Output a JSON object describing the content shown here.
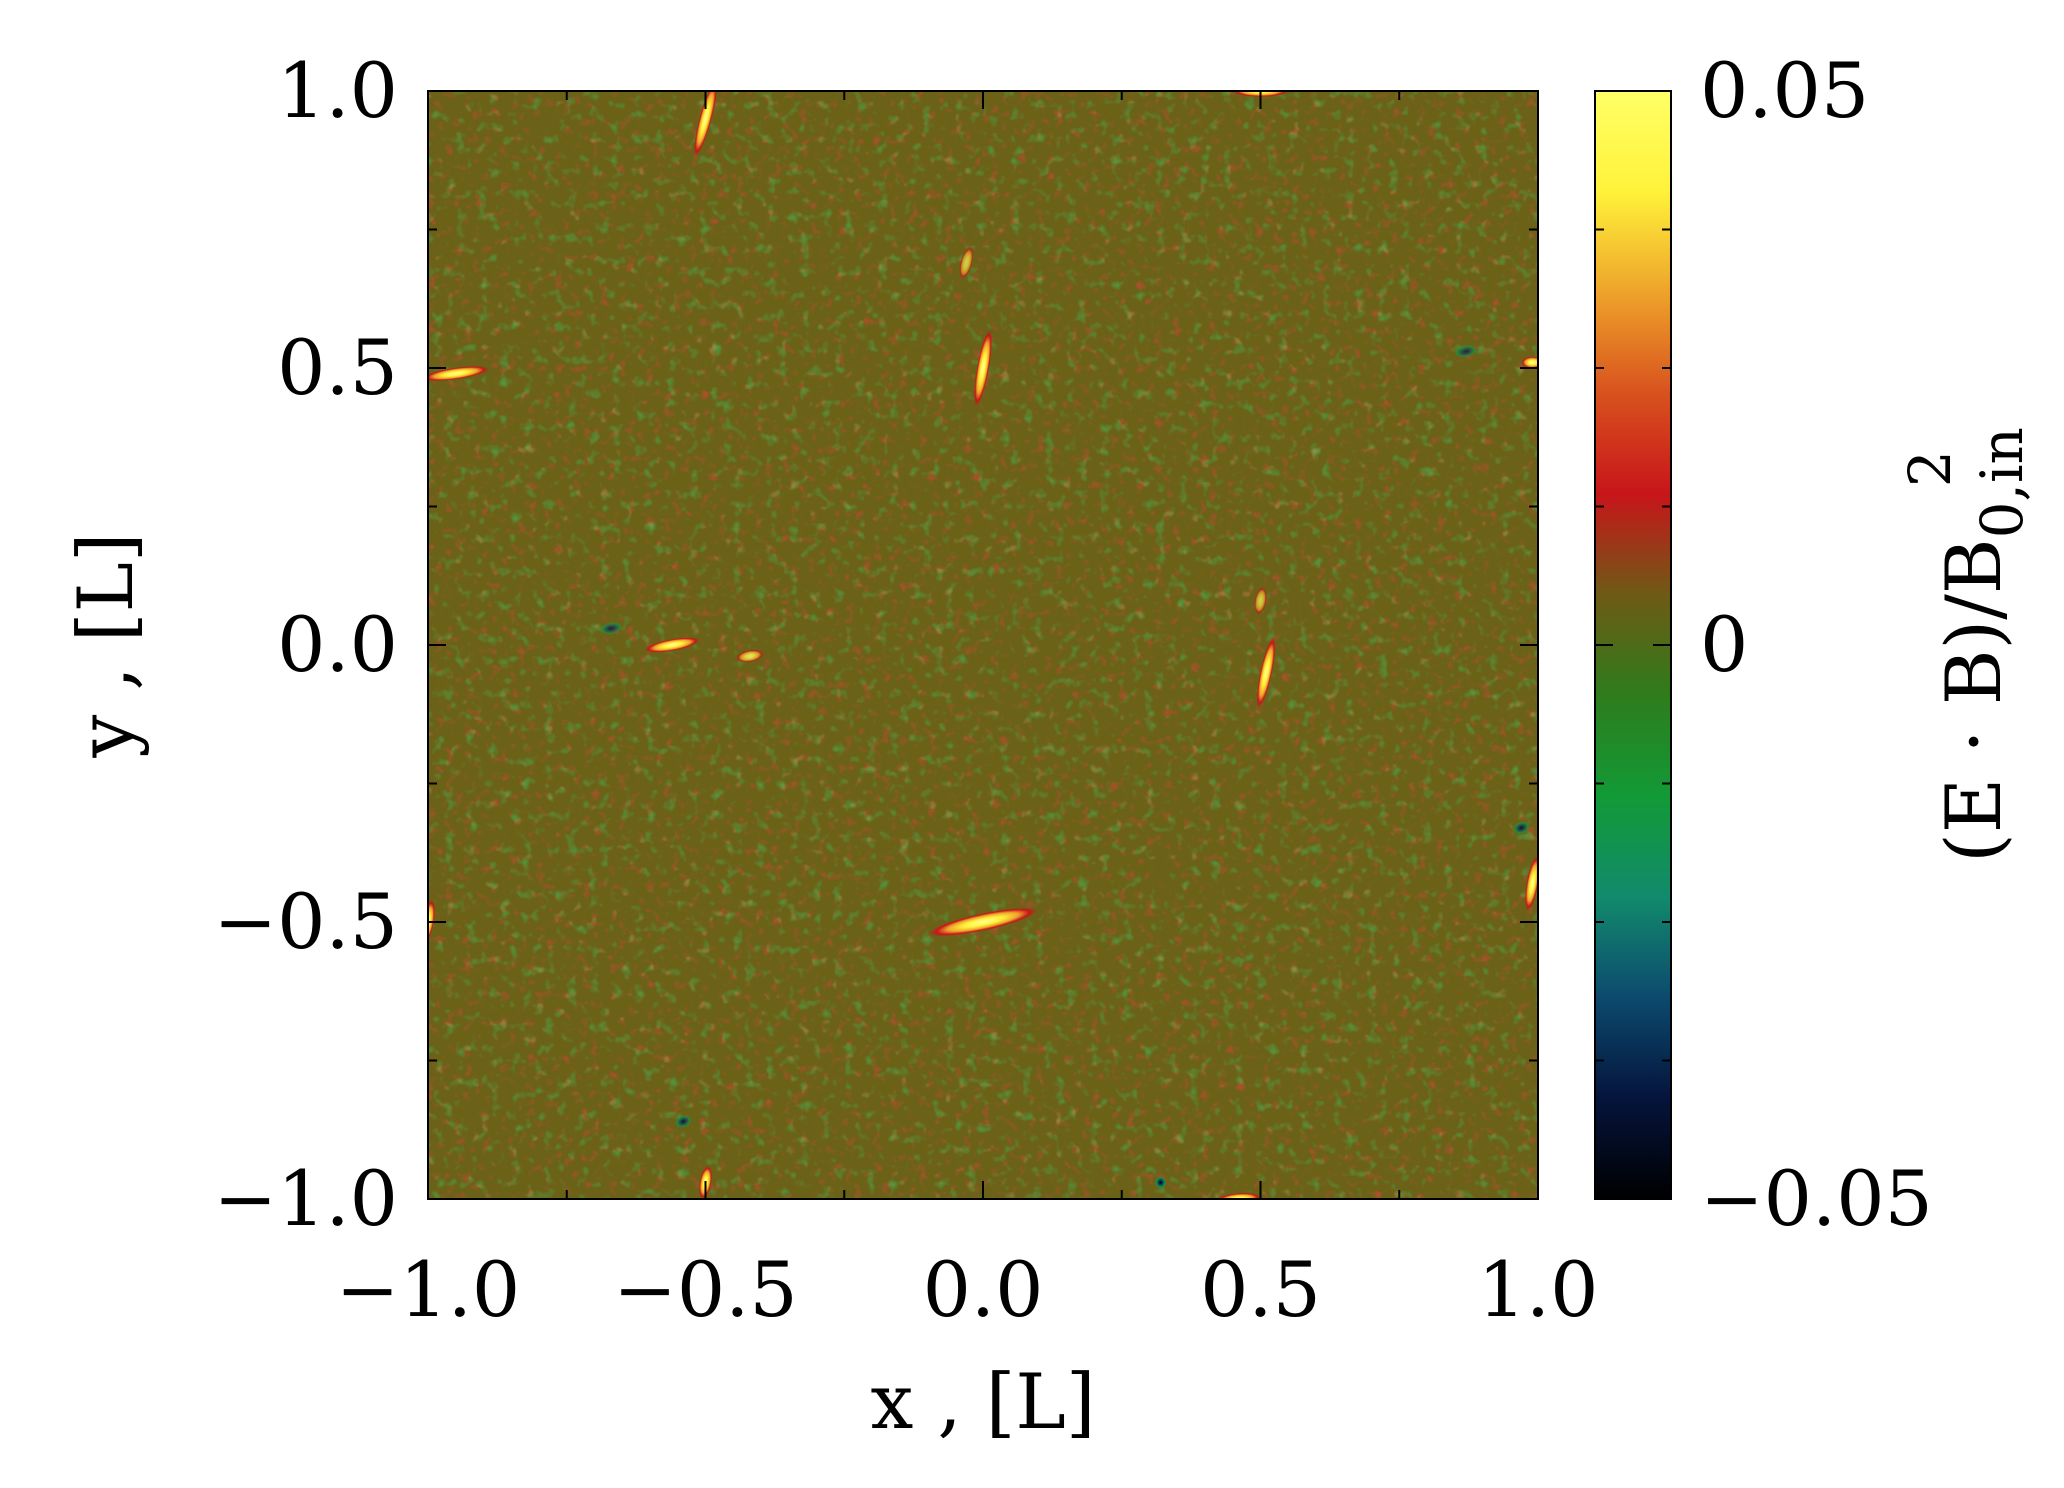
{
  "chart_data": {
    "type": "heatmap",
    "xlabel": "x , [L]",
    "ylabel": "y , [L]",
    "xlim": [
      -1.0,
      1.0
    ],
    "ylim": [
      -1.0,
      1.0
    ],
    "x_ticks": [
      "−1.0",
      "−0.5",
      "0.0",
      "0.5",
      "1.0"
    ],
    "y_ticks": [
      "−1.0",
      "−0.5",
      "0.0",
      "0.5",
      "1.0"
    ],
    "x_tick_values": [
      -1.0,
      -0.5,
      0.0,
      0.5,
      1.0
    ],
    "y_tick_values": [
      -1.0,
      -0.5,
      0.0,
      0.5,
      1.0
    ],
    "colorbar": {
      "label_main": "(E · B)/B",
      "label_subscript": "0,in",
      "label_superscript": "2",
      "range": [
        -0.05,
        0.05
      ],
      "ticks": [
        "−0.05",
        "0",
        "0.05"
      ],
      "tick_values": [
        -0.05,
        0.0,
        0.05
      ],
      "colormap": [
        "#000000",
        "#05143c",
        "#0c4a6e",
        "#128a6c",
        "#129a36",
        "#2e7c1c",
        "#6e5a16",
        "#c8151a",
        "#d8521e",
        "#eea32a",
        "#fff23a",
        "#ffff66"
      ]
    },
    "background_color": "#6b6218",
    "features": [
      {
        "x": -0.5,
        "y": 0.95,
        "angle_deg": -75,
        "length": 0.14,
        "peak": 0.05
      },
      {
        "x": 0.5,
        "y": 1.0,
        "angle_deg": 0,
        "length": 0.1,
        "peak": 0.05
      },
      {
        "x": -0.95,
        "y": 0.49,
        "angle_deg": -8,
        "length": 0.12,
        "peak": 0.05
      },
      {
        "x": 0.0,
        "y": 0.5,
        "angle_deg": -80,
        "length": 0.14,
        "peak": 0.05
      },
      {
        "x": -0.03,
        "y": 0.69,
        "angle_deg": -75,
        "length": 0.06,
        "peak": 0.02
      },
      {
        "x": 0.99,
        "y": 0.51,
        "angle_deg": 0,
        "length": 0.04,
        "peak": 0.05
      },
      {
        "x": -0.56,
        "y": 0.0,
        "angle_deg": -10,
        "length": 0.1,
        "peak": 0.05
      },
      {
        "x": -0.42,
        "y": -0.02,
        "angle_deg": -10,
        "length": 0.05,
        "peak": 0.03
      },
      {
        "x": 0.51,
        "y": -0.05,
        "angle_deg": -78,
        "length": 0.13,
        "peak": 0.05
      },
      {
        "x": 0.5,
        "y": 0.08,
        "angle_deg": -80,
        "length": 0.05,
        "peak": 0.02
      },
      {
        "x": 0.0,
        "y": -0.5,
        "angle_deg": -12,
        "length": 0.2,
        "peak": 0.05
      },
      {
        "x": -1.0,
        "y": -0.5,
        "angle_deg": -80,
        "length": 0.08,
        "peak": 0.05
      },
      {
        "x": 0.99,
        "y": -0.43,
        "angle_deg": -80,
        "length": 0.1,
        "peak": 0.05
      },
      {
        "x": -0.5,
        "y": -0.97,
        "angle_deg": -80,
        "length": 0.06,
        "peak": 0.05
      },
      {
        "x": 0.46,
        "y": -1.0,
        "angle_deg": -5,
        "length": 0.08,
        "peak": 0.05
      },
      {
        "x": 0.32,
        "y": -0.97,
        "angle_deg": 0,
        "length": 0.02,
        "peak": -0.05
      },
      {
        "x": -0.54,
        "y": -0.86,
        "angle_deg": -20,
        "length": 0.03,
        "peak": -0.03
      },
      {
        "x": 0.97,
        "y": -0.33,
        "angle_deg": -20,
        "length": 0.03,
        "peak": -0.03
      },
      {
        "x": -0.67,
        "y": 0.03,
        "angle_deg": -10,
        "length": 0.04,
        "peak": -0.02
      },
      {
        "x": 0.87,
        "y": 0.53,
        "angle_deg": -10,
        "length": 0.04,
        "peak": -0.02
      }
    ]
  }
}
